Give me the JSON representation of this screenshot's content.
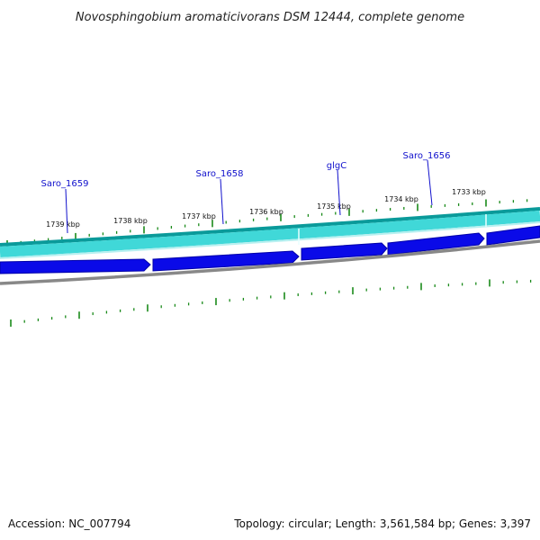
{
  "title": "Novosphingobium aromaticivorans DSM 12444, complete genome",
  "footer": {
    "accession": "Accession: NC_007794",
    "summary": "Topology: circular; Length: 3,561,584 bp; Genes: 3,397"
  },
  "colors": {
    "background": "#ffffff",
    "backbone_dark": "#0a9a9a",
    "backbone_light": "#40d8d8",
    "gene_fill": "#0a0ae8",
    "gene_outline": "#0000a8",
    "inner_track": "#888888",
    "tick": "#1a8a1a",
    "gene_label": "#1010cc",
    "label_line": "#1010cc"
  },
  "icons": [
    "green-tick-mark",
    "gene-arrow"
  ],
  "tick_labels": [
    "1739 kbp",
    "1738 kbp",
    "1737 kbp",
    "1736 kbp",
    "1735 kbp",
    "1734 kbp",
    "1733 kbp"
  ],
  "gene_labels": [
    "Saro_1659",
    "Saro_1658",
    "glgC",
    "Saro_1656"
  ]
}
